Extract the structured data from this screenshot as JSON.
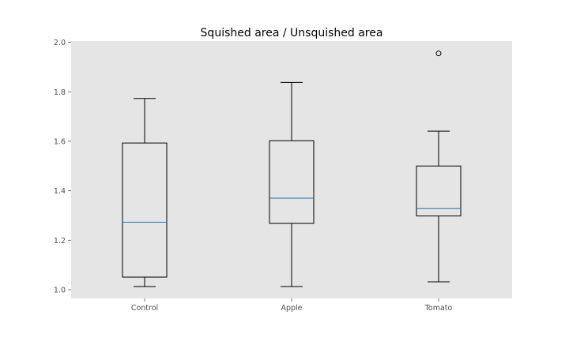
{
  "chart_data": {
    "type": "box",
    "title": "Squished area / Unsquished area",
    "xlabel": "",
    "ylabel": "",
    "categories": [
      "Control",
      "Apple",
      "Tomato"
    ],
    "ylim": [
      0.965,
      2.005
    ],
    "yticks": [
      1.0,
      1.2,
      1.4,
      1.6,
      1.8,
      2.0
    ],
    "ytick_labels": [
      "1.0",
      "1.2",
      "1.4",
      "1.6",
      "1.8",
      "2.0"
    ],
    "grid": false,
    "boxes": [
      {
        "name": "Control",
        "whislo": 1.013,
        "q1": 1.051,
        "med": 1.273,
        "q3": 1.593,
        "whishi": 1.773,
        "fliers": []
      },
      {
        "name": "Apple",
        "whislo": 1.013,
        "q1": 1.268,
        "med": 1.37,
        "q3": 1.602,
        "whishi": 1.838,
        "fliers": []
      },
      {
        "name": "Tomato",
        "whislo": 1.032,
        "q1": 1.298,
        "med": 1.328,
        "q3": 1.5,
        "whishi": 1.641,
        "fliers": [
          1.955
        ]
      }
    ],
    "colors": {
      "plot_background": "#e5e5e5",
      "median": "#1f77b4",
      "box": "#000000",
      "tick_label": "#4d4d4d"
    }
  }
}
